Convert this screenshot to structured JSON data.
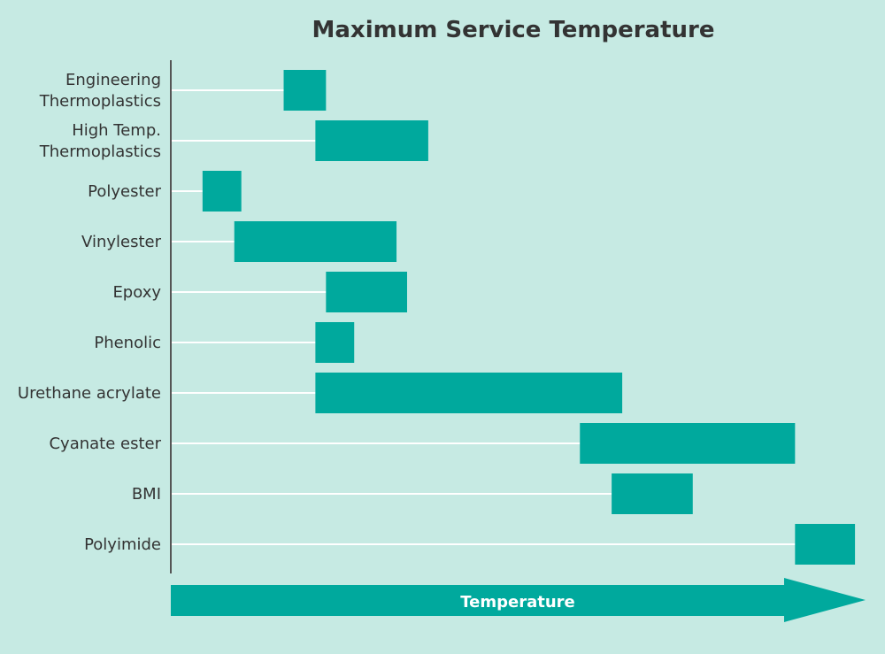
{
  "chart_data": {
    "type": "bar",
    "title": "Maximum Service Temperature",
    "xlabel": "Temperature",
    "ylabel": "",
    "categories": [
      [
        "Engineering",
        "Thermoplastics"
      ],
      [
        "High Temp.",
        "Thermoplastics"
      ],
      [
        "Polyester"
      ],
      [
        "Vinylester"
      ],
      [
        "Epoxy"
      ],
      [
        "Phenolic"
      ],
      [
        "Urethane acrylate"
      ],
      [
        "Cyanate ester"
      ],
      [
        "BMI"
      ],
      [
        "Polyimide"
      ]
    ],
    "ranges": [
      [
        0.16,
        0.22
      ],
      [
        0.205,
        0.365
      ],
      [
        0.045,
        0.1
      ],
      [
        0.09,
        0.32
      ],
      [
        0.22,
        0.335
      ],
      [
        0.205,
        0.26
      ],
      [
        0.205,
        0.64
      ],
      [
        0.58,
        0.885
      ],
      [
        0.625,
        0.74
      ],
      [
        0.885,
        0.97
      ]
    ],
    "xlim": [
      0,
      1
    ],
    "grid": true,
    "colors": {
      "background": "#c6eae3",
      "bar": "#00a99d",
      "gridline": "#ffffff",
      "axis": "#555555",
      "text": "#333333"
    }
  }
}
